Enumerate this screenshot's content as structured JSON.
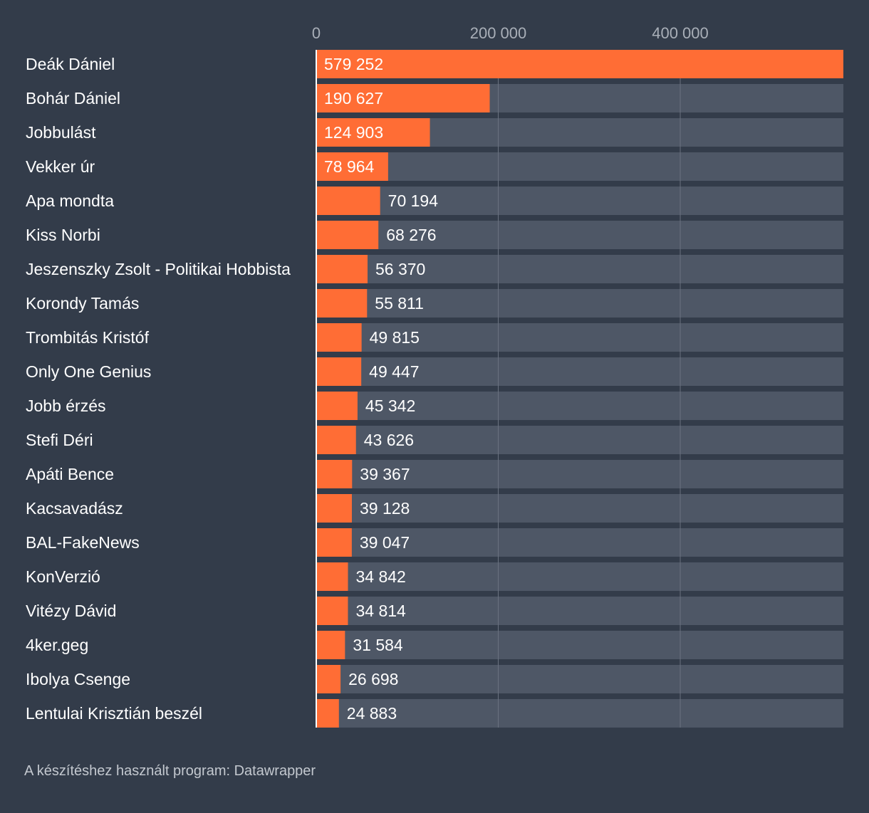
{
  "chart_data": {
    "type": "bar",
    "orientation": "horizontal",
    "title": "",
    "xlabel": "",
    "ylabel": "",
    "xlim": [
      0,
      579252
    ],
    "ticks": [
      0,
      200000,
      400000
    ],
    "tick_labels": [
      "0",
      "200 000",
      "400 000"
    ],
    "grid": true,
    "categories": [
      "Deák Dániel",
      "Bohár Dániel",
      "Jobbulást",
      "Vekker úr",
      "Apa mondta",
      "Kiss Norbi",
      "Jeszenszky Zsolt - Politikai Hobbista",
      "Korondy Tamás",
      "Trombitás Kristóf",
      "Only One Genius",
      "Jobb érzés",
      "Stefi Déri",
      "Apáti Bence",
      "Kacsavadász",
      "BAL-FakeNews",
      "KonVerzió",
      "Vitézy Dávid",
      "4ker.geg",
      "Ibolya Csenge",
      "Lentulai Krisztián beszél"
    ],
    "values": [
      579252,
      190627,
      124903,
      78964,
      70194,
      68276,
      56370,
      55811,
      49815,
      49447,
      45342,
      43626,
      39367,
      39128,
      39047,
      34842,
      34814,
      31584,
      26698,
      24883
    ],
    "value_labels": [
      "579 252",
      "190 627",
      "124 903",
      "78 964",
      "70 194",
      "68 276",
      "56 370",
      "55 811",
      "49 815",
      "49 447",
      "45 342",
      "43 626",
      "39 367",
      "39 128",
      "39 047",
      "34 842",
      "34 814",
      "31 584",
      "26 698",
      "24 883"
    ]
  },
  "colors": {
    "background": "#333c4a",
    "bar": "#ff6d35",
    "track": "#4e5766",
    "gridline": "#6a7280",
    "axis": "#ffffff"
  },
  "footer": {
    "credit": "A készítéshez használt program: Datawrapper"
  }
}
